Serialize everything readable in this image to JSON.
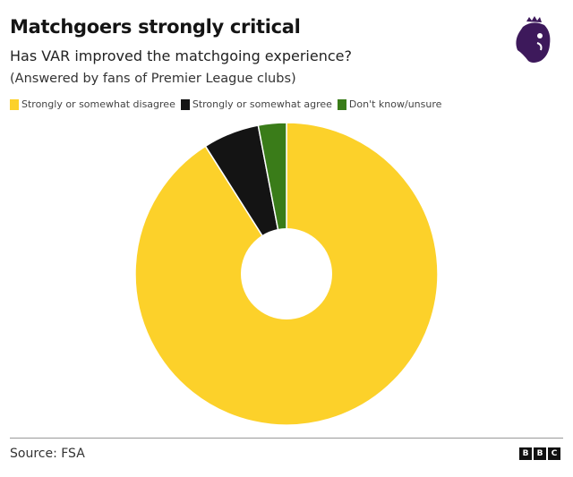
{
  "header": {
    "title": "Matchgoers strongly critical",
    "subtitle": "Has VAR improved the matchgoing experience?",
    "note": "(Answered by fans of Premier League clubs)"
  },
  "legend": [
    {
      "label": "Strongly or somewhat disagree",
      "color": "#fcd12a"
    },
    {
      "label": "Strongly or somewhat agree",
      "color": "#141414"
    },
    {
      "label": "Don't know/unsure",
      "color": "#3a7c19"
    }
  ],
  "footer": {
    "source": "Source: FSA",
    "brand": [
      "B",
      "B",
      "C"
    ]
  },
  "logo": {
    "icon": "premier-league-lion-icon",
    "color": "#3d195b"
  },
  "chart_data": {
    "type": "pie",
    "variant": "donut",
    "title": "Matchgoers strongly critical",
    "subtitle": "Has VAR improved the matchgoing experience?",
    "categories": [
      "Strongly or somewhat disagree",
      "Strongly or somewhat agree",
      "Don't know/unsure"
    ],
    "values": [
      91,
      6,
      3
    ],
    "colors": [
      "#fcd12a",
      "#141414",
      "#3a7c19"
    ],
    "legend_position": "top",
    "source": "FSA"
  }
}
